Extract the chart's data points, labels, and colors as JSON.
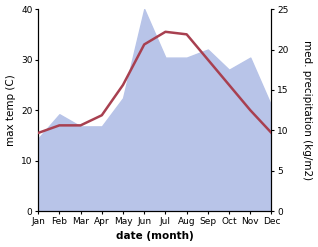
{
  "months": [
    "Jan",
    "Feb",
    "Mar",
    "Apr",
    "May",
    "Jun",
    "Jul",
    "Aug",
    "Sep",
    "Oct",
    "Nov",
    "Dec"
  ],
  "month_x": [
    0,
    1,
    2,
    3,
    4,
    5,
    6,
    7,
    8,
    9,
    10,
    11
  ],
  "temp_max": [
    15.5,
    17.0,
    17.0,
    19.0,
    25.0,
    33.0,
    35.5,
    35.0,
    30.0,
    25.0,
    20.0,
    15.5
  ],
  "precipitation": [
    9.0,
    12.0,
    10.5,
    10.5,
    14.0,
    25.0,
    19.0,
    19.0,
    20.0,
    17.5,
    19.0,
    13.0
  ],
  "temp_color": "#a84050",
  "precip_color_fill": "#b8c4e8",
  "left_ylim": [
    0,
    40
  ],
  "right_ylim": [
    0,
    25
  ],
  "left_yticks": [
    0,
    10,
    20,
    30,
    40
  ],
  "right_yticks": [
    0,
    5,
    10,
    15,
    20,
    25
  ],
  "xlabel": "date (month)",
  "ylabel_left": "max temp (C)",
  "ylabel_right": "med. precipitation (kg/m2)",
  "axis_fontsize": 7.5,
  "tick_fontsize": 6.5,
  "figsize": [
    3.18,
    2.47
  ],
  "dpi": 100
}
